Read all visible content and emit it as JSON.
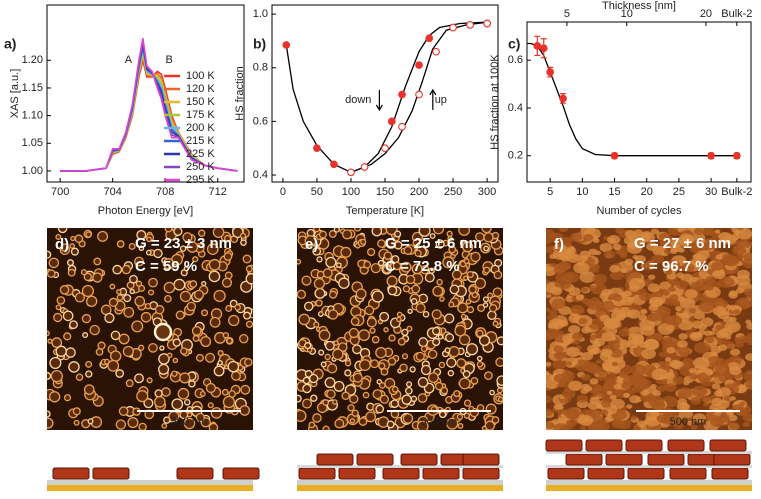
{
  "chart_data": [
    {
      "type": "line",
      "panel": "a)",
      "xlabel": "Photon Energy [eV]",
      "ylabel": "XAS [a.u.]",
      "annotations": [
        "A",
        "B"
      ],
      "x": [
        700,
        702,
        703.5,
        704,
        704.5,
        705,
        705.5,
        706,
        706.3,
        706.6,
        707,
        707.4,
        707.7,
        708,
        708.5,
        709,
        709.5,
        710,
        711,
        712,
        713.5
      ],
      "series": [
        {
          "name": "100 K",
          "color": "#e8322b",
          "values": [
            1.0,
            1.0,
            1.005,
            1.03,
            1.035,
            1.06,
            1.1,
            1.17,
            1.2,
            1.17,
            1.17,
            1.18,
            1.175,
            1.15,
            1.1,
            1.07,
            1.05,
            1.03,
            1.01,
            1.005,
            1.0
          ]
        },
        {
          "name": "120 K",
          "color": "#f0642a",
          "values": [
            1.0,
            1.0,
            1.005,
            1.031,
            1.036,
            1.061,
            1.103,
            1.174,
            1.205,
            1.173,
            1.171,
            1.176,
            1.169,
            1.144,
            1.095,
            1.069,
            1.049,
            1.029,
            1.01,
            1.005,
            1.0
          ]
        },
        {
          "name": "150 K",
          "color": "#e6b830",
          "values": [
            1.0,
            1.0,
            1.005,
            1.033,
            1.036,
            1.063,
            1.105,
            1.178,
            1.21,
            1.175,
            1.173,
            1.173,
            1.164,
            1.138,
            1.09,
            1.068,
            1.048,
            1.028,
            1.01,
            1.005,
            1.0
          ]
        },
        {
          "name": "175 K",
          "color": "#a6c83a",
          "values": [
            1.0,
            1.0,
            1.005,
            1.034,
            1.037,
            1.064,
            1.108,
            1.181,
            1.215,
            1.178,
            1.174,
            1.169,
            1.158,
            1.131,
            1.085,
            1.066,
            1.046,
            1.026,
            1.01,
            1.005,
            1.0
          ]
        },
        {
          "name": "200 K",
          "color": "#62b8e8",
          "values": [
            1.0,
            1.0,
            1.005,
            1.035,
            1.038,
            1.065,
            1.11,
            1.185,
            1.22,
            1.18,
            1.175,
            1.165,
            1.153,
            1.125,
            1.08,
            1.065,
            1.045,
            1.025,
            1.01,
            1.005,
            1.0
          ]
        },
        {
          "name": "215 K",
          "color": "#3464cc",
          "values": [
            1.0,
            1.0,
            1.005,
            1.036,
            1.038,
            1.066,
            1.113,
            1.189,
            1.225,
            1.183,
            1.176,
            1.161,
            1.147,
            1.119,
            1.075,
            1.064,
            1.044,
            1.024,
            1.01,
            1.005,
            1.0
          ]
        },
        {
          "name": "225 K",
          "color": "#2a3a9e",
          "values": [
            1.0,
            1.0,
            1.005,
            1.038,
            1.039,
            1.068,
            1.115,
            1.193,
            1.23,
            1.185,
            1.178,
            1.158,
            1.141,
            1.113,
            1.07,
            1.063,
            1.043,
            1.023,
            1.01,
            1.005,
            1.0
          ]
        },
        {
          "name": "250 K",
          "color": "#8444c4",
          "values": [
            1.0,
            1.0,
            1.005,
            1.039,
            1.039,
            1.069,
            1.118,
            1.196,
            1.235,
            1.188,
            1.179,
            1.154,
            1.136,
            1.106,
            1.065,
            1.061,
            1.041,
            1.021,
            1.01,
            1.005,
            1.0
          ]
        },
        {
          "name": "295 K",
          "color": "#e044d4",
          "values": [
            1.0,
            1.0,
            1.005,
            1.04,
            1.04,
            1.07,
            1.12,
            1.2,
            1.24,
            1.19,
            1.18,
            1.15,
            1.13,
            1.1,
            1.06,
            1.06,
            1.04,
            1.02,
            1.01,
            1.005,
            1.0
          ]
        }
      ],
      "xlim": [
        699,
        714
      ],
      "ylim": [
        0.98,
        1.3
      ],
      "xticks": [
        700,
        704,
        708,
        712
      ],
      "yticks": [
        {
          "value": 1,
          "label": "1.00"
        },
        1.05,
        {
          "value": 1.1,
          "label": "1.10"
        },
        1.15,
        {
          "value": 1.2,
          "label": "1.20"
        }
      ],
      "legend": "right"
    },
    {
      "type": "scatter",
      "panel": "b)",
      "xlabel": "Temperature [K]",
      "ylabel": "HS fraction",
      "annotations": [
        "down",
        "up"
      ],
      "series": [
        {
          "style": "curve",
          "color": "#000000",
          "x": [
            5,
            15,
            30,
            50,
            75,
            100,
            120,
            140,
            160,
            180,
            200,
            215,
            230,
            260,
            300
          ],
          "values": [
            0.885,
            0.72,
            0.6,
            0.51,
            0.44,
            0.41,
            0.43,
            0.48,
            0.58,
            0.73,
            0.86,
            0.92,
            0.95,
            0.965,
            0.97
          ]
        },
        {
          "style": "curve",
          "color": "#000000",
          "x": [
            100,
            130,
            150,
            170,
            190,
            205,
            220,
            240,
            270,
            300
          ],
          "values": [
            0.41,
            0.44,
            0.48,
            0.54,
            0.64,
            0.75,
            0.87,
            0.94,
            0.96,
            0.97
          ]
        },
        {
          "style": "filled",
          "color": "#e8322b",
          "x": [
            5,
            50,
            75,
            160,
            175,
            200,
            215,
            300
          ],
          "values": [
            0.885,
            0.5,
            0.44,
            0.6,
            0.7,
            0.81,
            0.91,
            0.965
          ]
        },
        {
          "style": "open",
          "color": "#e8322b",
          "x": [
            100,
            120,
            150,
            175,
            200,
            225,
            250,
            275,
            300
          ],
          "values": [
            0.41,
            0.43,
            0.5,
            0.58,
            0.7,
            0.86,
            0.95,
            0.96,
            0.965
          ]
        }
      ],
      "xlim": [
        -16,
        316
      ],
      "ylim": [
        0.374,
        1.034
      ],
      "xticks": [
        0,
        50,
        100,
        150,
        200,
        250,
        300
      ],
      "yticks": [
        0.4,
        0.6,
        0.8,
        {
          "value": 1,
          "label": "1.0"
        }
      ]
    },
    {
      "type": "scatter",
      "panel": "c)",
      "xlabel": "Number of cycles",
      "ylabel": "HS fraction at 100K",
      "x2label": "Thickness [nm]",
      "series": [
        {
          "style": "curve",
          "color": "#000000",
          "x": [
            1.5,
            2,
            3,
            4,
            5,
            6,
            7,
            8,
            9,
            10,
            12,
            15,
            20,
            34
          ],
          "values": [
            0.67,
            0.67,
            0.66,
            0.62,
            0.55,
            0.48,
            0.41,
            0.33,
            0.27,
            0.23,
            0.205,
            0.2,
            0.2,
            0.2
          ]
        },
        {
          "style": "filled",
          "color": "#e8322b",
          "x": [
            3,
            4,
            5,
            7,
            15,
            30,
            34
          ],
          "values": [
            0.66,
            0.65,
            0.55,
            0.44,
            0.2,
            0.2,
            0.2
          ],
          "errors": [
            0.04,
            0.04,
            0.02,
            0.02,
            0.01,
            0.01,
            0.01
          ]
        }
      ],
      "xlim": [
        1.4,
        36.2
      ],
      "ylim": [
        0.09,
        0.76
      ],
      "xticks": [
        5,
        10,
        15,
        20,
        25,
        30,
        {
          "value": 34,
          "label": "Bulk-2"
        }
      ],
      "x2ticks": [
        {
          "value": 7.6,
          "label": "5"
        },
        {
          "value": 16.9,
          "label": "10"
        },
        {
          "value": 29.2,
          "label": "20"
        },
        {
          "value": 34,
          "label": "Bulk-2"
        }
      ],
      "yticks": [
        0.2,
        0.4,
        0.6
      ]
    }
  ],
  "images": [
    {
      "label": "d)",
      "grain": "G = 23 ± 3 nm",
      "coverage": "C = 59 %",
      "scale_bar": "500 nm"
    },
    {
      "label": "e)",
      "grain": "G = 25 ± 6 nm",
      "coverage": "C = 72.8 %",
      "scale_bar": "500 nm"
    },
    {
      "label": "f)",
      "grain": "G = 27 ± 6 nm",
      "coverage": "C = 96.7 %",
      "scale_bar": "500 nm"
    }
  ]
}
